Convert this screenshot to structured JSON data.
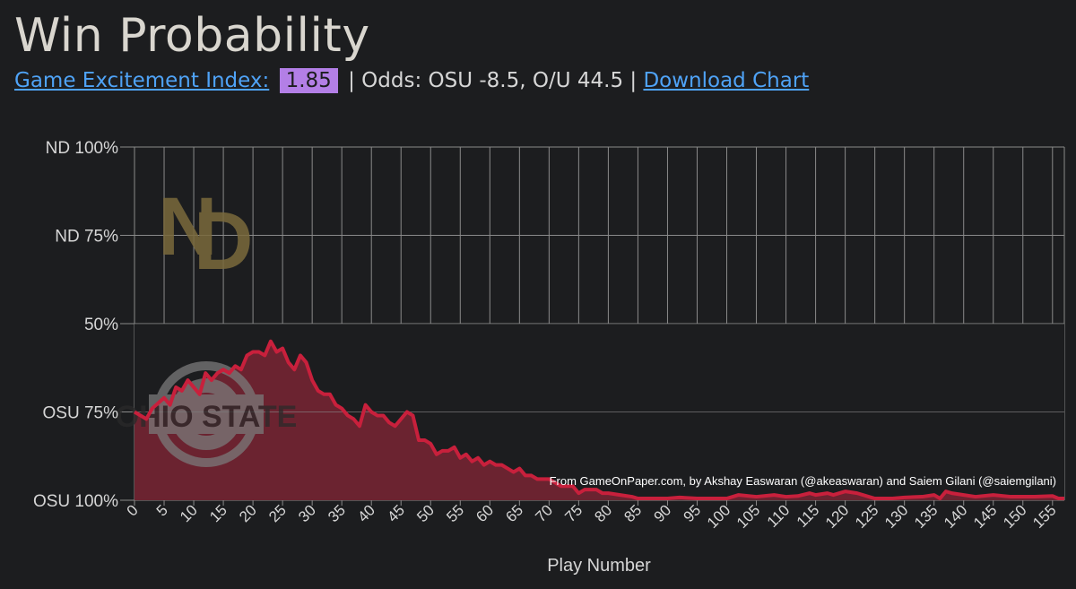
{
  "header": {
    "title": "Win Probability",
    "gei_label": "Game Excitement Index:",
    "gei_value": "1.85",
    "odds_text": "| Odds: OSU -8.5, O/U 44.5 |",
    "download_label": "Download Chart"
  },
  "colors": {
    "background": "#1c1d1f",
    "link": "#4fa3f7",
    "badge": "#b37fe6",
    "line": "#c8203c",
    "fill": "#6b2330",
    "grid": "#8a8a8a",
    "nd_logo": "#7a6a3c",
    "osu_logo": "#7a7a7a"
  },
  "chart_data": {
    "type": "area",
    "title": "",
    "xlabel": "Play Number",
    "ylabel": "",
    "xlim": [
      0,
      157
    ],
    "ylim": [
      0,
      100
    ],
    "x_ticks": [
      "0",
      "5",
      "10",
      "15",
      "20",
      "25",
      "30",
      "35",
      "40",
      "45",
      "50",
      "55",
      "60",
      "65",
      "70",
      "75",
      "80",
      "85",
      "90",
      "95",
      "100",
      "105",
      "110",
      "115",
      "120",
      "125",
      "130",
      "135",
      "140",
      "145",
      "150",
      "155"
    ],
    "y_ticks": [
      {
        "value": 100,
        "label": "ND 100%"
      },
      {
        "value": 75,
        "label": "ND 75%"
      },
      {
        "value": 50,
        "label": "50%"
      },
      {
        "value": 25,
        "label": "OSU 75%"
      },
      {
        "value": 0,
        "label": "OSU 100%"
      }
    ],
    "annotation": "From GameOnPaper.com, by Akshay Easwaran (@akeaswaran) and Saiem Gilani (@saiemgilani)",
    "logos": [
      "notre-dame-logo",
      "ohio-state-logo"
    ],
    "series": [
      {
        "x": [
          0,
          2,
          3,
          5,
          6,
          7,
          8,
          9,
          10,
          11,
          12,
          13,
          14,
          15,
          16,
          17,
          18,
          19,
          20,
          21,
          22,
          23,
          24,
          25,
          26,
          27,
          28,
          29,
          30,
          31,
          32,
          33,
          34,
          35,
          36,
          37,
          38,
          39,
          40,
          41,
          42,
          43,
          44,
          45,
          46,
          47,
          48,
          49,
          50,
          51,
          52,
          53,
          54,
          55,
          56,
          57,
          58,
          59,
          60,
          61,
          62,
          63,
          64,
          65,
          66,
          67,
          68,
          69,
          70,
          71,
          72,
          73,
          74,
          75,
          76,
          77,
          78,
          79,
          80,
          82,
          84,
          85,
          88,
          90,
          92,
          95,
          100,
          102,
          105,
          108,
          110,
          112,
          114,
          115,
          117,
          118,
          120,
          122,
          125,
          128,
          130,
          133,
          135,
          136,
          137,
          138,
          140,
          142,
          145,
          148,
          150,
          152,
          155,
          156,
          157
        ],
        "y": [
          25,
          23,
          26,
          29,
          27,
          32,
          31,
          34,
          32,
          30,
          36,
          34,
          36,
          37,
          36,
          38,
          37,
          41,
          42,
          42,
          41,
          45,
          42,
          43,
          39,
          37,
          41,
          39,
          34,
          31,
          30,
          30,
          27,
          26,
          24,
          23,
          21,
          27,
          25,
          24,
          24,
          22,
          21,
          23,
          25,
          24,
          17,
          17,
          16,
          13,
          14,
          14,
          15,
          12,
          13,
          11,
          12,
          10,
          11,
          10,
          10,
          9,
          8,
          9,
          7,
          7,
          6,
          6,
          6,
          5,
          4,
          4,
          4,
          2,
          3,
          3,
          3,
          2,
          2,
          1.5,
          1,
          0.5,
          0.5,
          0.5,
          0.8,
          0.5,
          0.5,
          1.5,
          1,
          1.5,
          1,
          1.2,
          2,
          1.5,
          2,
          1.5,
          2.5,
          2,
          0.5,
          0.5,
          0.8,
          1,
          1.5,
          0.5,
          2.5,
          2,
          1.5,
          1,
          1.5,
          1,
          1,
          1,
          1.2,
          0.5,
          0.5
        ]
      }
    ]
  }
}
